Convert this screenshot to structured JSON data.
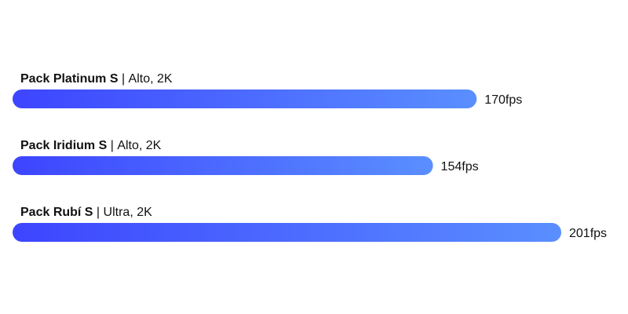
{
  "chart_data": {
    "type": "bar",
    "orientation": "horizontal",
    "title": "",
    "xlabel": "",
    "ylabel": "",
    "unit": "fps",
    "xlim": [
      0,
      201
    ],
    "grid": false,
    "colors": {
      "bar_start": "#3d45ff",
      "bar_end": "#5a8fff"
    },
    "bars": [
      {
        "name": "Pack Platinum S",
        "separator": " | ",
        "detail": "Alto, 2K",
        "value": 170,
        "value_label": "170fps"
      },
      {
        "name": "Pack Iridium S",
        "separator": " | ",
        "detail": "Alto, 2K",
        "value": 154,
        "value_label": "154fps"
      },
      {
        "name": "Pack Rubí S",
        "separator": " | ",
        "detail": "Ultra, 2K",
        "value": 201,
        "value_label": "201fps"
      }
    ]
  }
}
